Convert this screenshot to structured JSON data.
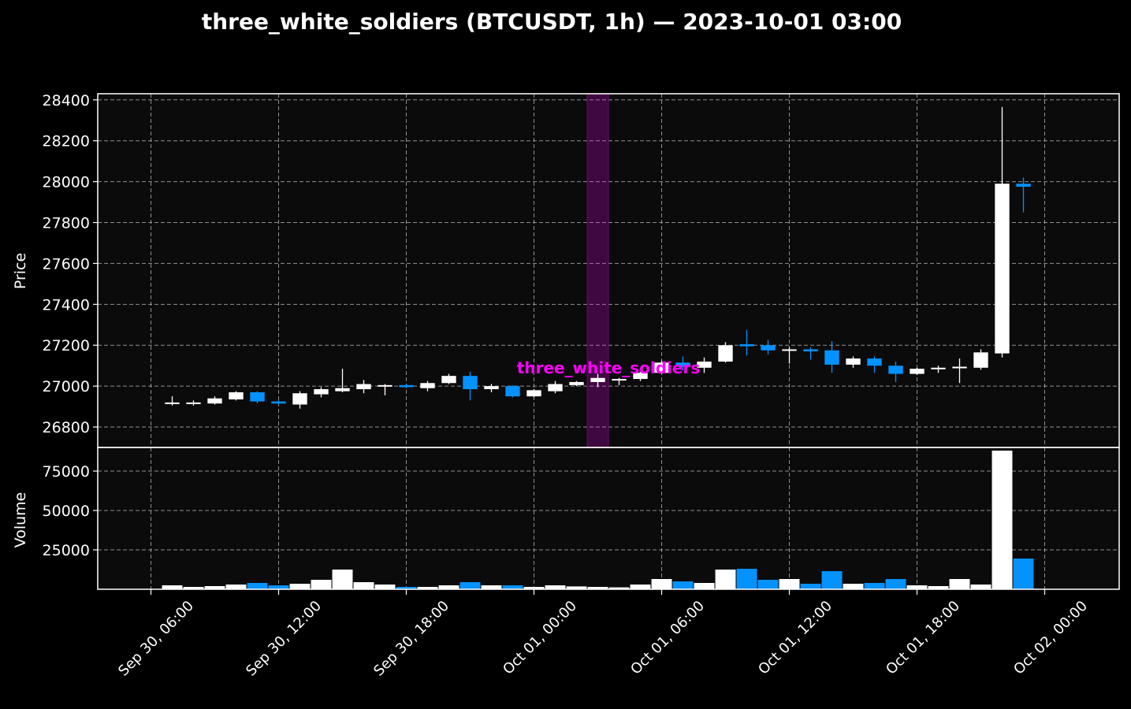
{
  "chart_data": {
    "type": "candlestick",
    "title": "three_white_soldiers (BTCUSDT, 1h) — 2023-10-01 03:00",
    "price_panel": {
      "ylabel": "Price",
      "ylim": [
        26700,
        28430
      ],
      "yticks": [
        26800,
        27000,
        27200,
        27400,
        27600,
        27800,
        28000,
        28200,
        28400
      ],
      "grid": true
    },
    "volume_panel": {
      "ylabel": "Volume",
      "ylim": [
        0,
        90000
      ],
      "yticks": [
        25000,
        50000,
        75000
      ],
      "grid": true
    },
    "xlim": [
      3.5,
      51.5
    ],
    "xticks": [
      {
        "x": 6,
        "label": "Sep 30, 06:00"
      },
      {
        "x": 12,
        "label": "Sep 30, 12:00"
      },
      {
        "x": 18,
        "label": "Sep 30, 18:00"
      },
      {
        "x": 24,
        "label": "Oct 01, 00:00"
      },
      {
        "x": 30,
        "label": "Oct 01, 06:00"
      },
      {
        "x": 36,
        "label": "Oct 01, 12:00"
      },
      {
        "x": 42,
        "label": "Oct 01, 18:00"
      },
      {
        "x": 48,
        "label": "Oct 02, 00:00"
      }
    ],
    "colors": {
      "up": "#ffffff",
      "down": "#0492ff",
      "highlight": "#ff00ff",
      "annotation": "#ff00ff",
      "background": "#000000",
      "panel": "#0b0b0b",
      "grid": "#b0b0b0",
      "text": "#ffffff"
    },
    "highlight": {
      "x_start": 26.5,
      "x_end": 27.5
    },
    "annotation": {
      "text": "three_white_soldiers",
      "x": 27.5,
      "y": 27090
    },
    "candles": [
      {
        "t": 7,
        "o": 26915,
        "h": 26950,
        "l": 26905,
        "c": 26920
      },
      {
        "t": 8,
        "o": 26915,
        "h": 26930,
        "l": 26905,
        "c": 26920
      },
      {
        "t": 9,
        "o": 26915,
        "h": 26950,
        "l": 26910,
        "c": 26940
      },
      {
        "t": 10,
        "o": 26935,
        "h": 26975,
        "l": 26930,
        "c": 26970
      },
      {
        "t": 11,
        "o": 26970,
        "h": 26975,
        "l": 26915,
        "c": 26925
      },
      {
        "t": 12,
        "o": 26925,
        "h": 26930,
        "l": 26910,
        "c": 26915
      },
      {
        "t": 13,
        "o": 26910,
        "h": 26975,
        "l": 26890,
        "c": 26965
      },
      {
        "t": 14,
        "o": 26960,
        "h": 26995,
        "l": 26945,
        "c": 26985
      },
      {
        "t": 15,
        "o": 26975,
        "h": 27085,
        "l": 26970,
        "c": 26990
      },
      {
        "t": 16,
        "o": 26985,
        "h": 27030,
        "l": 26965,
        "c": 27010
      },
      {
        "t": 17,
        "o": 27000,
        "h": 27010,
        "l": 26955,
        "c": 27005
      },
      {
        "t": 18,
        "o": 27005,
        "h": 27010,
        "l": 26990,
        "c": 26995
      },
      {
        "t": 19,
        "o": 26990,
        "h": 27025,
        "l": 26975,
        "c": 27015
      },
      {
        "t": 20,
        "o": 27015,
        "h": 27060,
        "l": 27010,
        "c": 27050
      },
      {
        "t": 21,
        "o": 27050,
        "h": 27070,
        "l": 26930,
        "c": 26985
      },
      {
        "t": 22,
        "o": 26985,
        "h": 27010,
        "l": 26970,
        "c": 27000
      },
      {
        "t": 23,
        "o": 27000,
        "h": 27005,
        "l": 26945,
        "c": 26950
      },
      {
        "t": 24,
        "o": 26950,
        "h": 26985,
        "l": 26945,
        "c": 26980
      },
      {
        "t": 25,
        "o": 26975,
        "h": 27025,
        "l": 26965,
        "c": 27010
      },
      {
        "t": 26,
        "o": 27005,
        "h": 27025,
        "l": 27000,
        "c": 27020
      },
      {
        "t": 27,
        "o": 27020,
        "h": 27060,
        "l": 26995,
        "c": 27040
      },
      {
        "t": 28,
        "o": 27030,
        "h": 27040,
        "l": 27005,
        "c": 27035
      },
      {
        "t": 29,
        "o": 27035,
        "h": 27070,
        "l": 27025,
        "c": 27065
      },
      {
        "t": 30,
        "o": 27065,
        "h": 27125,
        "l": 27060,
        "c": 27115
      },
      {
        "t": 31,
        "o": 27115,
        "h": 27145,
        "l": 27075,
        "c": 27095
      },
      {
        "t": 32,
        "o": 27090,
        "h": 27140,
        "l": 27065,
        "c": 27120
      },
      {
        "t": 33,
        "o": 27120,
        "h": 27215,
        "l": 27115,
        "c": 27200
      },
      {
        "t": 34,
        "o": 27205,
        "h": 27275,
        "l": 27150,
        "c": 27195
      },
      {
        "t": 35,
        "o": 27200,
        "h": 27225,
        "l": 27155,
        "c": 27175
      },
      {
        "t": 36,
        "o": 27175,
        "h": 27190,
        "l": 27110,
        "c": 27180
      },
      {
        "t": 37,
        "o": 27180,
        "h": 27190,
        "l": 27130,
        "c": 27170
      },
      {
        "t": 38,
        "o": 27175,
        "h": 27220,
        "l": 27065,
        "c": 27105
      },
      {
        "t": 39,
        "o": 27105,
        "h": 27145,
        "l": 27090,
        "c": 27135
      },
      {
        "t": 40,
        "o": 27135,
        "h": 27145,
        "l": 27065,
        "c": 27100
      },
      {
        "t": 41,
        "o": 27100,
        "h": 27120,
        "l": 27020,
        "c": 27060
      },
      {
        "t": 42,
        "o": 27060,
        "h": 27090,
        "l": 27055,
        "c": 27085
      },
      {
        "t": 43,
        "o": 27085,
        "h": 27100,
        "l": 27065,
        "c": 27090
      },
      {
        "t": 44,
        "o": 27090,
        "h": 27135,
        "l": 27015,
        "c": 27095
      },
      {
        "t": 45,
        "o": 27090,
        "h": 27180,
        "l": 27080,
        "c": 27165
      },
      {
        "t": 46,
        "o": 27160,
        "h": 28365,
        "l": 27140,
        "c": 27990
      },
      {
        "t": 47,
        "o": 27990,
        "h": 28020,
        "l": 27850,
        "c": 27975
      }
    ],
    "volume_bars": [
      {
        "t": 7,
        "v": 2500
      },
      {
        "t": 8,
        "v": 1500
      },
      {
        "t": 9,
        "v": 2000
      },
      {
        "t": 10,
        "v": 3000
      },
      {
        "t": 11,
        "v": 4000
      },
      {
        "t": 12,
        "v": 2500
      },
      {
        "t": 13,
        "v": 3500
      },
      {
        "t": 14,
        "v": 6000
      },
      {
        "t": 15,
        "v": 12500
      },
      {
        "t": 16,
        "v": 4500
      },
      {
        "t": 17,
        "v": 3000
      },
      {
        "t": 18,
        "v": 1500
      },
      {
        "t": 19,
        "v": 1500
      },
      {
        "t": 20,
        "v": 2500
      },
      {
        "t": 21,
        "v": 4500
      },
      {
        "t": 22,
        "v": 2500
      },
      {
        "t": 23,
        "v": 2500
      },
      {
        "t": 24,
        "v": 1500
      },
      {
        "t": 25,
        "v": 2500
      },
      {
        "t": 26,
        "v": 1800
      },
      {
        "t": 27,
        "v": 1500
      },
      {
        "t": 28,
        "v": 1200
      },
      {
        "t": 29,
        "v": 3000
      },
      {
        "t": 30,
        "v": 6500
      },
      {
        "t": 31,
        "v": 5000
      },
      {
        "t": 32,
        "v": 4000
      },
      {
        "t": 33,
        "v": 12500
      },
      {
        "t": 34,
        "v": 13000
      },
      {
        "t": 35,
        "v": 6000
      },
      {
        "t": 36,
        "v": 6500
      },
      {
        "t": 37,
        "v": 3500
      },
      {
        "t": 38,
        "v": 11500
      },
      {
        "t": 39,
        "v": 3500
      },
      {
        "t": 40,
        "v": 4000
      },
      {
        "t": 41,
        "v": 6500
      },
      {
        "t": 42,
        "v": 2500
      },
      {
        "t": 43,
        "v": 2000
      },
      {
        "t": 44,
        "v": 6500
      },
      {
        "t": 45,
        "v": 3000
      },
      {
        "t": 46,
        "v": 88000
      },
      {
        "t": 47,
        "v": 19500
      }
    ]
  }
}
